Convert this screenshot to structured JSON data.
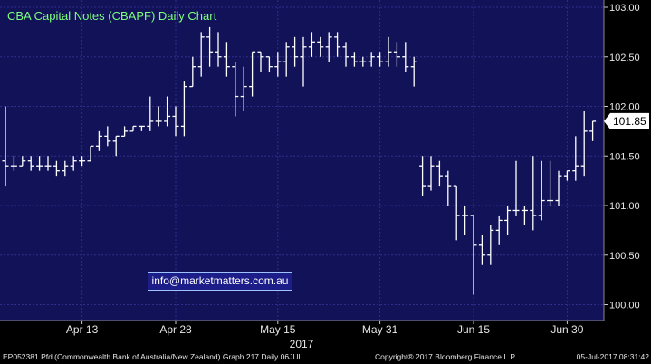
{
  "colors": {
    "plot_bg": "#121259",
    "axis_bg": "#000000",
    "grid": "#2e2e8a",
    "bars": "#ffffff",
    "title": "#7cff7c",
    "last_price_box": "#ffffff"
  },
  "footer": {
    "left": "EP052381 Pfd (Commonwealth Bank of Australia/New Zealand) Graph 217  Daily 06JUL",
    "center": "Copyright® 2017 Bloomberg Finance L.P.",
    "right": "05-Jul-2017 08:31:42"
  },
  "watermark": "info@marketmatters.com.au",
  "chart_data": {
    "type": "ohlc",
    "title": "CBA Capital Notes (CBAPF) Daily Chart",
    "xlabel": "2017",
    "ylim": [
      99.9,
      103.05
    ],
    "yticks": [
      "100.00",
      "100.50",
      "101.00",
      "101.50",
      "102.00",
      "102.50",
      "103.00"
    ],
    "ytick_values": [
      100.0,
      100.5,
      101.0,
      101.5,
      102.0,
      102.5,
      103.0
    ],
    "xticks": [
      {
        "label": "Apr 13",
        "index": 9
      },
      {
        "label": "Apr 28",
        "index": 20
      },
      {
        "label": "May 15",
        "index": 32
      },
      {
        "label": "May 31",
        "index": 44
      },
      {
        "label": "Jun 15",
        "index": 55
      },
      {
        "label": "Jun 30",
        "index": 66
      }
    ],
    "last_price": "101.85",
    "last_price_value": 101.85,
    "grid": true,
    "series": [
      {
        "values": [
          {
            "o": 101.45,
            "h": 102.0,
            "l": 101.2,
            "c": 101.4
          },
          {
            "o": 101.4,
            "h": 101.5,
            "l": 101.35,
            "c": 101.4
          },
          {
            "o": 101.4,
            "h": 101.5,
            "l": 101.4,
            "c": 101.45
          },
          {
            "o": 101.45,
            "h": 101.5,
            "l": 101.35,
            "c": 101.4
          },
          {
            "o": 101.4,
            "h": 101.5,
            "l": 101.35,
            "c": 101.4
          },
          {
            "o": 101.4,
            "h": 101.5,
            "l": 101.35,
            "c": 101.4
          },
          {
            "o": 101.4,
            "h": 101.45,
            "l": 101.3,
            "c": 101.35
          },
          {
            "o": 101.35,
            "h": 101.45,
            "l": 101.3,
            "c": 101.4
          },
          {
            "o": 101.4,
            "h": 101.5,
            "l": 101.35,
            "c": 101.45
          },
          {
            "o": 101.45,
            "h": 101.5,
            "l": 101.4,
            "c": 101.45
          },
          {
            "o": 101.45,
            "h": 101.6,
            "l": 101.45,
            "c": 101.6
          },
          {
            "o": 101.6,
            "h": 101.75,
            "l": 101.55,
            "c": 101.7
          },
          {
            "o": 101.7,
            "h": 101.8,
            "l": 101.6,
            "c": 101.65
          },
          {
            "o": 101.65,
            "h": 101.7,
            "l": 101.5,
            "c": 101.7
          },
          {
            "o": 101.7,
            "h": 101.8,
            "l": 101.7,
            "c": 101.75
          },
          {
            "o": 101.75,
            "h": 101.8,
            "l": 101.75,
            "c": 101.8
          },
          {
            "o": 101.8,
            "h": 101.8,
            "l": 101.75,
            "c": 101.8
          },
          {
            "o": 101.8,
            "h": 102.1,
            "l": 101.75,
            "c": 101.85
          },
          {
            "o": 101.85,
            "h": 102.0,
            "l": 101.8,
            "c": 101.85
          },
          {
            "o": 101.85,
            "h": 102.1,
            "l": 101.8,
            "c": 101.9
          },
          {
            "o": 101.9,
            "h": 102.0,
            "l": 101.7,
            "c": 101.8
          },
          {
            "o": 101.8,
            "h": 102.25,
            "l": 101.7,
            "c": 102.2
          },
          {
            "o": 102.2,
            "h": 102.5,
            "l": 102.2,
            "c": 102.4
          },
          {
            "o": 102.4,
            "h": 102.75,
            "l": 102.3,
            "c": 102.7
          },
          {
            "o": 102.7,
            "h": 102.8,
            "l": 102.4,
            "c": 102.55
          },
          {
            "o": 102.55,
            "h": 102.75,
            "l": 102.4,
            "c": 102.5
          },
          {
            "o": 102.5,
            "h": 102.65,
            "l": 102.3,
            "c": 102.4
          },
          {
            "o": 102.4,
            "h": 102.45,
            "l": 101.9,
            "c": 102.1
          },
          {
            "o": 102.1,
            "h": 102.4,
            "l": 101.95,
            "c": 102.2
          },
          {
            "o": 102.2,
            "h": 102.55,
            "l": 102.1,
            "c": 102.55
          },
          {
            "o": 102.55,
            "h": 102.55,
            "l": 102.35,
            "c": 102.5
          },
          {
            "o": 102.5,
            "h": 102.5,
            "l": 102.35,
            "c": 102.4
          },
          {
            "o": 102.4,
            "h": 102.55,
            "l": 102.3,
            "c": 102.45
          },
          {
            "o": 102.45,
            "h": 102.65,
            "l": 102.3,
            "c": 102.6
          },
          {
            "o": 102.6,
            "h": 102.7,
            "l": 102.4,
            "c": 102.5
          },
          {
            "o": 102.5,
            "h": 102.7,
            "l": 102.2,
            "c": 102.6
          },
          {
            "o": 102.6,
            "h": 102.75,
            "l": 102.5,
            "c": 102.65
          },
          {
            "o": 102.65,
            "h": 102.7,
            "l": 102.5,
            "c": 102.6
          },
          {
            "o": 102.6,
            "h": 102.75,
            "l": 102.45,
            "c": 102.7
          },
          {
            "o": 102.7,
            "h": 102.75,
            "l": 102.5,
            "c": 102.6
          },
          {
            "o": 102.6,
            "h": 102.65,
            "l": 102.4,
            "c": 102.5
          },
          {
            "o": 102.5,
            "h": 102.55,
            "l": 102.4,
            "c": 102.45
          },
          {
            "o": 102.45,
            "h": 102.5,
            "l": 102.4,
            "c": 102.45
          },
          {
            "o": 102.45,
            "h": 102.55,
            "l": 102.4,
            "c": 102.5
          },
          {
            "o": 102.5,
            "h": 102.55,
            "l": 102.4,
            "c": 102.45
          },
          {
            "o": 102.45,
            "h": 102.7,
            "l": 102.4,
            "c": 102.55
          },
          {
            "o": 102.55,
            "h": 102.65,
            "l": 102.4,
            "c": 102.5
          },
          {
            "o": 102.5,
            "h": 102.65,
            "l": 102.35,
            "c": 102.4
          },
          {
            "o": 102.4,
            "h": 102.5,
            "l": 102.2,
            "c": 102.45
          },
          {
            "o": 101.4,
            "h": 101.5,
            "l": 101.1,
            "c": 101.2
          },
          {
            "o": 101.2,
            "h": 101.5,
            "l": 101.15,
            "c": 101.4
          },
          {
            "o": 101.4,
            "h": 101.45,
            "l": 101.2,
            "c": 101.3
          },
          {
            "o": 101.3,
            "h": 101.35,
            "l": 101.0,
            "c": 101.2
          },
          {
            "o": 101.2,
            "h": 101.2,
            "l": 100.65,
            "c": 100.9
          },
          {
            "o": 100.9,
            "h": 101.0,
            "l": 100.7,
            "c": 100.9
          },
          {
            "o": 100.9,
            "h": 100.9,
            "l": 100.1,
            "c": 100.6
          },
          {
            "o": 100.6,
            "h": 100.7,
            "l": 100.4,
            "c": 100.5
          },
          {
            "o": 100.5,
            "h": 100.8,
            "l": 100.4,
            "c": 100.75
          },
          {
            "o": 100.75,
            "h": 100.9,
            "l": 100.6,
            "c": 100.85
          },
          {
            "o": 100.85,
            "h": 101.0,
            "l": 100.7,
            "c": 100.95
          },
          {
            "o": 100.95,
            "h": 101.45,
            "l": 100.9,
            "c": 100.95
          },
          {
            "o": 100.95,
            "h": 101.0,
            "l": 100.8,
            "c": 100.95
          },
          {
            "o": 100.95,
            "h": 101.5,
            "l": 100.75,
            "c": 100.9
          },
          {
            "o": 100.9,
            "h": 101.45,
            "l": 100.85,
            "c": 101.05
          },
          {
            "o": 101.05,
            "h": 101.45,
            "l": 101.0,
            "c": 101.05
          },
          {
            "o": 101.05,
            "h": 101.35,
            "l": 101.0,
            "c": 101.3
          },
          {
            "o": 101.3,
            "h": 101.35,
            "l": 101.25,
            "c": 101.35
          },
          {
            "o": 101.35,
            "h": 101.7,
            "l": 101.25,
            "c": 101.4
          },
          {
            "o": 101.4,
            "h": 101.95,
            "l": 101.3,
            "c": 101.75
          },
          {
            "o": 101.75,
            "h": 101.85,
            "l": 101.65,
            "c": 101.85
          }
        ]
      }
    ]
  }
}
